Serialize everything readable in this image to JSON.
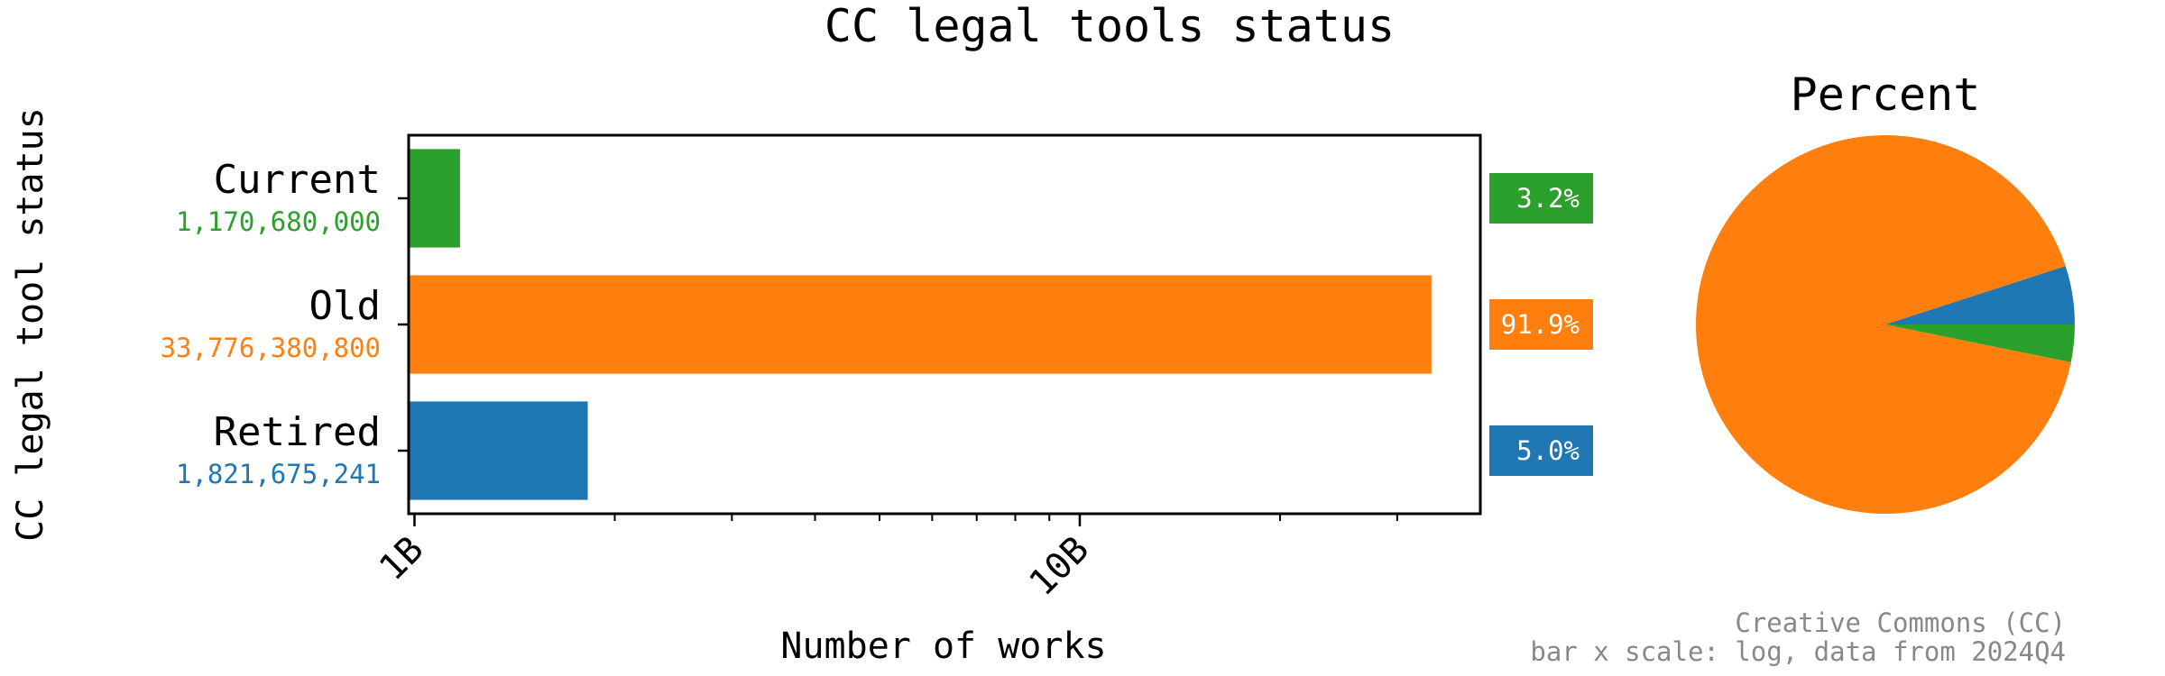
{
  "chart_data": [
    {
      "type": "bar",
      "orientation": "horizontal",
      "title": "CC legal tools status",
      "xlabel": "Number of works",
      "ylabel": "CC legal tool status",
      "x_scale": "log",
      "xlim": [
        980000000,
        40000000000
      ],
      "xticks_major": [
        {
          "value": 1000000000,
          "label": "1B"
        },
        {
          "value": 10000000000,
          "label": "10B"
        }
      ],
      "xticks_minor": [
        2000000000,
        3000000000,
        4000000000,
        5000000000,
        6000000000,
        7000000000,
        8000000000,
        9000000000,
        20000000000,
        30000000000
      ],
      "categories": [
        "Current",
        "Old",
        "Retired"
      ],
      "values": [
        1170680000,
        33776380800,
        1821675241
      ],
      "value_labels": [
        "1,170,680,000",
        "33,776,380,800",
        "1,821,675,241"
      ],
      "percent_labels": [
        "3.2%",
        "91.9%",
        "5.0%"
      ],
      "colors": [
        "#2ca02c",
        "#ff7f0e",
        "#1f77b4"
      ],
      "grid": false,
      "legend": "none"
    },
    {
      "type": "pie",
      "title": "Percent",
      "categories": [
        "Retired",
        "Old",
        "Current"
      ],
      "values": [
        5.0,
        91.9,
        3.2
      ],
      "colors": [
        "#1f77b4",
        "#ff7f0e",
        "#2ca02c"
      ],
      "legend": "none"
    }
  ],
  "footer": {
    "line1": "Creative Commons (CC)",
    "line2": "bar x scale: log, data from 2024Q4"
  }
}
